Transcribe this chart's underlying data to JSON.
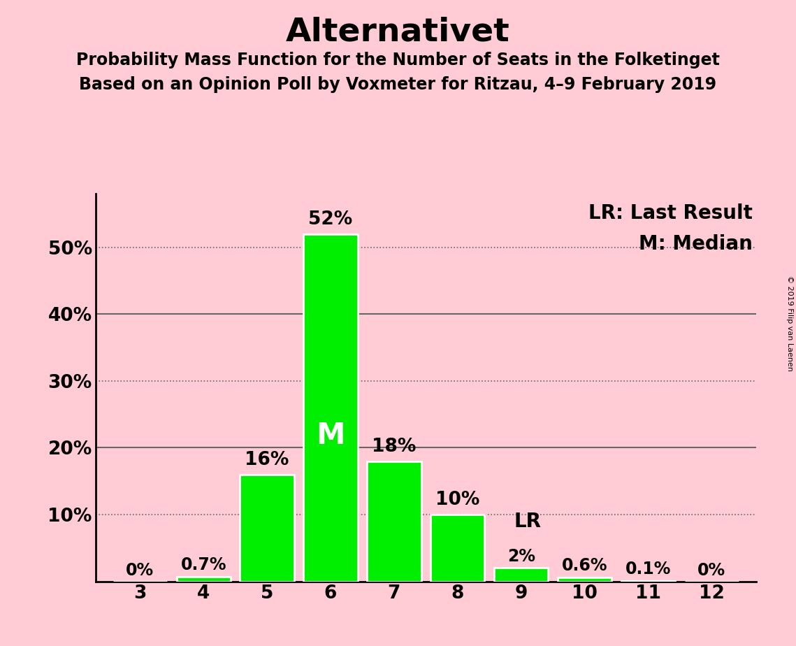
{
  "title": "Alternativet",
  "subtitle1": "Probability Mass Function for the Number of Seats in the Folketinget",
  "subtitle2": "Based on an Opinion Poll by Voxmeter for Ritzau, 4–9 February 2019",
  "copyright": "© 2019 Filip van Laenen",
  "seats": [
    3,
    4,
    5,
    6,
    7,
    8,
    9,
    10,
    11,
    12
  ],
  "probabilities": [
    0.0,
    0.7,
    16.0,
    52.0,
    18.0,
    10.0,
    2.0,
    0.6,
    0.1,
    0.0
  ],
  "labels": [
    "0%",
    "0.7%",
    "16%",
    "52%",
    "18%",
    "10%",
    "2%",
    "0.6%",
    "0.1%",
    "0%"
  ],
  "bar_color": "#00ee00",
  "bar_edge_color": "#ffffff",
  "background_color": "#ffccd5",
  "median_seat": 6,
  "last_result_seat": 9,
  "ylim": [
    0,
    58
  ],
  "yticks_solid": [
    20,
    40
  ],
  "yticks_dotted": [
    10,
    30,
    50
  ],
  "ytick_labels_map": {
    "0": "",
    "10": "10%",
    "20": "20%",
    "30": "30%",
    "40": "40%",
    "50": "50%"
  },
  "grid_color": "#666666",
  "title_fontsize": 34,
  "subtitle_fontsize": 17,
  "label_fontsize": 17,
  "tick_fontsize": 19,
  "legend_fontsize": 20,
  "median_label_color": "#ffffff",
  "median_label_fontsize": 30,
  "lr_label_fontsize": 20,
  "copyright_fontsize": 8
}
